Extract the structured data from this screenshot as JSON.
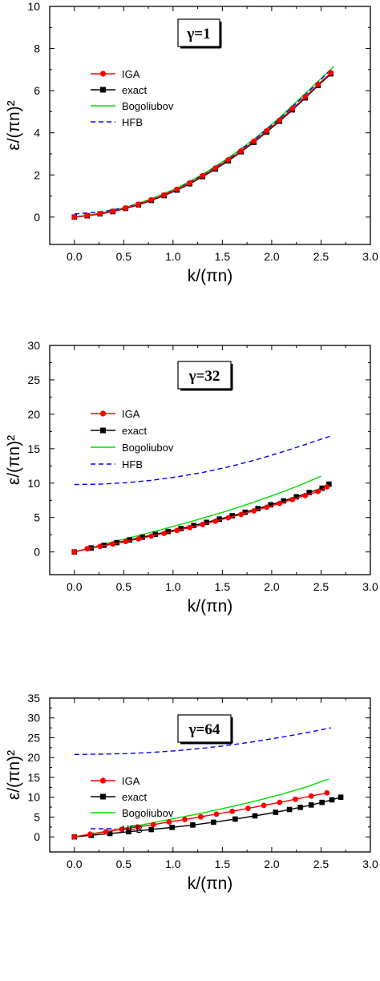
{
  "chart_data": [
    {
      "type": "line",
      "annotation": "γ=1",
      "xlabel": "k/(πn)",
      "ylabel": "ε/(πn)²",
      "xlim": [
        -0.25,
        3.0
      ],
      "ylim": [
        -1.3,
        10
      ],
      "xticks": [
        "0.0",
        "0.5",
        "1.0",
        "1.5",
        "2.0",
        "2.5",
        "3.0"
      ],
      "yticks": [
        "0",
        "2",
        "4",
        "6",
        "8",
        "10"
      ],
      "legend_position": "upper-left",
      "series": [
        {
          "name": "IGA",
          "color": "#ff0000",
          "marker": "circle",
          "style": "solid",
          "x": [
            0.0,
            0.13,
            0.26,
            0.39,
            0.52,
            0.65,
            0.78,
            0.91,
            1.04,
            1.17,
            1.3,
            1.43,
            1.56,
            1.69,
            1.82,
            1.95,
            2.08,
            2.21,
            2.34,
            2.47,
            2.6
          ],
          "y": [
            0.0,
            0.07,
            0.17,
            0.28,
            0.43,
            0.61,
            0.82,
            1.05,
            1.32,
            1.62,
            1.96,
            2.33,
            2.72,
            3.14,
            3.6,
            4.09,
            4.6,
            5.14,
            5.71,
            6.3,
            6.85
          ]
        },
        {
          "name": "exact",
          "color": "#000000",
          "marker": "square",
          "style": "solid",
          "x": [
            0.0,
            0.13,
            0.26,
            0.39,
            0.52,
            0.65,
            0.78,
            0.91,
            1.04,
            1.17,
            1.3,
            1.43,
            1.56,
            1.69,
            1.82,
            1.95,
            2.08,
            2.21,
            2.34,
            2.47,
            2.6
          ],
          "y": [
            0.0,
            0.06,
            0.15,
            0.26,
            0.41,
            0.58,
            0.79,
            1.02,
            1.28,
            1.58,
            1.92,
            2.28,
            2.67,
            3.1,
            3.55,
            4.04,
            4.55,
            5.09,
            5.66,
            6.25,
            6.8
          ]
        },
        {
          "name": "Bogoliubov",
          "color": "#00dd00",
          "style": "solid",
          "x": [
            0.0,
            0.26,
            0.52,
            0.78,
            1.04,
            1.3,
            1.56,
            1.82,
            2.08,
            2.34,
            2.63
          ],
          "y": [
            0.0,
            0.18,
            0.46,
            0.86,
            1.38,
            2.03,
            2.8,
            3.7,
            4.72,
            5.87,
            7.15
          ]
        },
        {
          "name": "HFB",
          "color": "#0000ff",
          "style": "dashed",
          "x": [
            0.0,
            0.26,
            0.52,
            0.78,
            1.04,
            1.3,
            1.56,
            1.82,
            2.08,
            2.34,
            2.6
          ],
          "y": [
            0.15,
            0.24,
            0.45,
            0.82,
            1.33,
            1.98,
            2.75,
            3.65,
            4.67,
            5.8,
            7.0
          ]
        }
      ]
    },
    {
      "type": "line",
      "annotation": "γ=32",
      "xlabel": "k/(πn)",
      "ylabel": "ε/(πn)²",
      "xlim": [
        -0.25,
        3.0
      ],
      "ylim": [
        -3.3,
        30
      ],
      "xticks": [
        "0.0",
        "0.5",
        "1.0",
        "1.5",
        "2.0",
        "2.5",
        "3.0"
      ],
      "yticks": [
        "0",
        "5",
        "10",
        "15",
        "20",
        "25",
        "30"
      ],
      "legend_position": "upper-left",
      "series": [
        {
          "name": "IGA",
          "color": "#ff0000",
          "marker": "circle",
          "style": "solid",
          "x": [
            0.0,
            0.13,
            0.26,
            0.39,
            0.52,
            0.65,
            0.78,
            0.91,
            1.04,
            1.17,
            1.3,
            1.43,
            1.56,
            1.69,
            1.82,
            1.95,
            2.08,
            2.21,
            2.34,
            2.47,
            2.56
          ],
          "y": [
            0.0,
            0.47,
            0.8,
            1.15,
            1.52,
            1.9,
            2.3,
            2.7,
            3.12,
            3.55,
            4.0,
            4.47,
            4.95,
            5.45,
            5.97,
            6.5,
            7.05,
            7.62,
            8.2,
            8.8,
            9.45
          ]
        },
        {
          "name": "exact",
          "color": "#000000",
          "marker": "square",
          "style": "solid",
          "x": [
            0.0,
            0.17,
            0.3,
            0.43,
            0.56,
            0.69,
            0.82,
            0.95,
            1.08,
            1.21,
            1.34,
            1.47,
            1.6,
            1.73,
            1.86,
            1.99,
            2.12,
            2.25,
            2.38,
            2.51,
            2.58
          ],
          "y": [
            0.0,
            0.58,
            0.97,
            1.35,
            1.75,
            2.15,
            2.55,
            2.97,
            3.4,
            3.84,
            4.3,
            4.77,
            5.26,
            5.77,
            6.3,
            6.85,
            7.42,
            8.01,
            8.63,
            9.26,
            9.85
          ]
        },
        {
          "name": "Bogoliubov",
          "color": "#00dd00",
          "style": "solid",
          "x": [
            0.0,
            0.25,
            0.5,
            0.75,
            1.0,
            1.25,
            1.5,
            1.75,
            2.0,
            2.25,
            2.5
          ],
          "y": [
            0.0,
            0.95,
            1.85,
            2.75,
            3.7,
            4.7,
            5.75,
            6.9,
            8.15,
            9.5,
            11.0
          ]
        },
        {
          "name": "HFB",
          "color": "#0000ff",
          "style": "dashed",
          "x": [
            0.0,
            0.26,
            0.52,
            0.78,
            1.04,
            1.3,
            1.56,
            1.82,
            2.08,
            2.34,
            2.6
          ],
          "y": [
            9.8,
            9.85,
            10.05,
            10.4,
            10.9,
            11.55,
            12.35,
            13.3,
            14.4,
            15.6,
            16.85
          ]
        }
      ]
    },
    {
      "type": "line",
      "annotation": "γ=64",
      "xlabel": "k/(πn)",
      "ylabel": "ε/(πn)²",
      "xlim": [
        -0.25,
        3.0
      ],
      "ylim": [
        -3.8,
        35
      ],
      "xticks": [
        "0.0",
        "0.5",
        "1.0",
        "1.5",
        "2.0",
        "2.5",
        "3.0"
      ],
      "yticks": [
        "0",
        "5",
        "10",
        "15",
        "20",
        "25",
        "30",
        "35"
      ],
      "legend_position": "left",
      "series": [
        {
          "name": "IGA",
          "color": "#ff0000",
          "marker": "circle",
          "style": "solid",
          "x": [
            0.0,
            0.16,
            0.32,
            0.48,
            0.64,
            0.8,
            0.96,
            1.12,
            1.28,
            1.44,
            1.6,
            1.76,
            1.92,
            2.08,
            2.24,
            2.4,
            2.56
          ],
          "y": [
            0.0,
            0.7,
            1.3,
            1.9,
            2.5,
            3.1,
            3.75,
            4.4,
            5.05,
            5.75,
            6.45,
            7.2,
            7.95,
            8.7,
            9.5,
            10.3,
            11.1
          ]
        },
        {
          "name": "exact",
          "color": "#000000",
          "marker": "square",
          "style": "solid",
          "x": [
            0.0,
            0.17,
            0.36,
            0.55,
            0.78,
            0.99,
            1.2,
            1.41,
            1.63,
            1.83,
            2.04,
            2.18,
            2.29,
            2.4,
            2.51,
            2.61,
            2.7
          ],
          "y": [
            0.0,
            0.4,
            0.85,
            1.3,
            1.85,
            2.4,
            3.0,
            3.7,
            4.5,
            5.3,
            6.2,
            6.9,
            7.45,
            8.05,
            8.7,
            9.35,
            10.0
          ]
        },
        {
          "name": "Bogoliubov",
          "color": "#00dd00",
          "style": "solid",
          "x": [
            0.0,
            0.26,
            0.52,
            0.78,
            1.04,
            1.3,
            1.56,
            1.82,
            2.08,
            2.34,
            2.58
          ],
          "y": [
            0.0,
            1.15,
            2.3,
            3.5,
            4.75,
            6.05,
            7.45,
            8.95,
            10.6,
            12.5,
            14.6
          ]
        },
        {
          "name": "HFB",
          "color": "#0000ff",
          "style": "dashed",
          "x": [
            0.0,
            0.26,
            0.52,
            0.78,
            1.04,
            1.3,
            1.56,
            1.82,
            2.08,
            2.34,
            2.6
          ],
          "y": [
            20.8,
            20.85,
            21.0,
            21.3,
            21.75,
            22.35,
            23.1,
            24.0,
            25.05,
            26.2,
            27.5
          ]
        }
      ]
    }
  ]
}
